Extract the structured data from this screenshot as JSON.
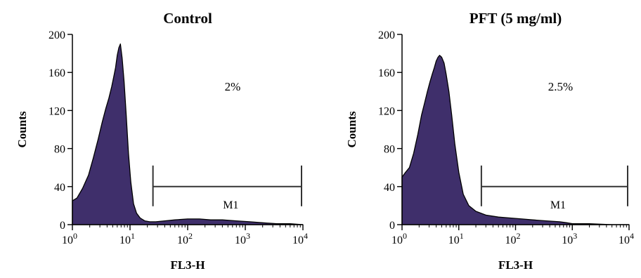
{
  "chart_data": [
    {
      "type": "area",
      "title": "Control",
      "xlabel": "FL3-H",
      "ylabel": "Counts",
      "x_scale": "log",
      "xlim": [
        1,
        10000
      ],
      "ylim": [
        0,
        200
      ],
      "y_ticks": [
        "0",
        "40",
        "80",
        "120",
        "160",
        "200"
      ],
      "x_ticks": [
        {
          "base": "10",
          "exp": "0"
        },
        {
          "base": "10",
          "exp": "1"
        },
        {
          "base": "10",
          "exp": "2"
        },
        {
          "base": "10",
          "exp": "3"
        },
        {
          "base": "10",
          "exp": "4"
        }
      ],
      "annotation": "2%",
      "marker": {
        "label": "M1",
        "range": [
          25,
          10000
        ],
        "level": 40
      },
      "series": [
        {
          "color": "#3f2f6b",
          "x": [
            1.0,
            1.2,
            1.5,
            1.9,
            2.3,
            2.8,
            3.3,
            3.8,
            4.3,
            4.8,
            5.2,
            5.6,
            6.0,
            6.4,
            6.8,
            7.3,
            7.9,
            8.6,
            9.4,
            10.3,
            11.5,
            13.0,
            15.0,
            18.0,
            22.0,
            28.0,
            40.0,
            60.0,
            100.0,
            160.0,
            250.0,
            400.0,
            700.0,
            1200.0,
            2000.0,
            3500.0,
            6000.0,
            10000.0
          ],
          "y": [
            25,
            28,
            38,
            52,
            70,
            90,
            108,
            122,
            133,
            145,
            155,
            165,
            178,
            186,
            190,
            175,
            150,
            115,
            75,
            45,
            22,
            12,
            7,
            4,
            3,
            3,
            4,
            5,
            6,
            6,
            5,
            5,
            4,
            3,
            2,
            1,
            1,
            0
          ]
        }
      ]
    },
    {
      "type": "area",
      "title": "PFT (5 mg/ml)",
      "xlabel": "FL3-H",
      "ylabel": "Counts",
      "x_scale": "log",
      "xlim": [
        1,
        10000
      ],
      "ylim": [
        0,
        200
      ],
      "y_ticks": [
        "0",
        "40",
        "80",
        "120",
        "160",
        "200"
      ],
      "x_ticks": [
        {
          "base": "10",
          "exp": "0"
        },
        {
          "base": "10",
          "exp": "1"
        },
        {
          "base": "10",
          "exp": "2"
        },
        {
          "base": "10",
          "exp": "3"
        },
        {
          "base": "10",
          "exp": "4"
        }
      ],
      "annotation": "2.5%",
      "marker": {
        "label": "M1",
        "range": [
          25,
          10000
        ],
        "level": 40
      },
      "series": [
        {
          "color": "#3f2f6b",
          "x": [
            1.0,
            1.15,
            1.35,
            1.6,
            1.9,
            2.2,
            2.5,
            2.8,
            3.1,
            3.4,
            3.7,
            4.0,
            4.3,
            4.6,
            5.0,
            5.5,
            6.0,
            6.7,
            7.5,
            8.5,
            10.0,
            12.0,
            15.0,
            20.0,
            30.0,
            50.0,
            80.0,
            130.0,
            200.0,
            350.0,
            600.0,
            800.0,
            1000.0,
            2000.0,
            5000.0,
            10000.0
          ],
          "y": [
            50,
            55,
            60,
            75,
            95,
            115,
            128,
            140,
            150,
            158,
            165,
            172,
            176,
            178,
            176,
            170,
            158,
            140,
            115,
            85,
            55,
            32,
            20,
            14,
            10,
            8,
            7,
            6,
            5,
            4,
            3,
            2,
            1,
            1,
            0,
            0
          ]
        }
      ]
    }
  ]
}
